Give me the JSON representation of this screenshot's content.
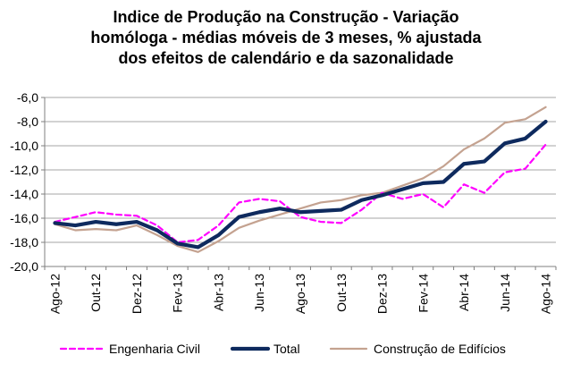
{
  "chart_data": {
    "type": "line",
    "title_lines": [
      "Indice de Produção na Construção  -  Variação",
      "homóloga - médias móveis de 3 meses, % ajustada",
      "dos efeitos de calendário  e da sazonalidade"
    ],
    "xlabel": "",
    "ylabel": "",
    "x_tick_labels": [
      "Ago-12",
      "Out-12",
      "Dez-12",
      "Fev-13",
      "Abr-13",
      "Jun-13",
      "Ago-13",
      "Out-13",
      "Dez-13",
      "Fev-14",
      "Abr-14",
      "Jun-14",
      "Ago-14"
    ],
    "x": [
      "Ago-12",
      "Set-12",
      "Out-12",
      "Nov-12",
      "Dez-12",
      "Jan-13",
      "Fev-13",
      "Mar-13",
      "Abr-13",
      "Mai-13",
      "Jun-13",
      "Jul-13",
      "Ago-13",
      "Set-13",
      "Out-13",
      "Nov-13",
      "Dez-13",
      "Jan-14",
      "Fev-14",
      "Mar-14",
      "Abr-14",
      "Mai-14",
      "Jun-14",
      "Jul-14",
      "Ago-14"
    ],
    "y_ticks": [
      "-6,0",
      "-8,0",
      "-10,0",
      "-12,0",
      "-14,0",
      "-16,0",
      "-18,0",
      "-20,0"
    ],
    "ylim": [
      -20,
      -6
    ],
    "grid": "horizontal",
    "legend_position": "bottom",
    "series": [
      {
        "name": "Engenharia Civil",
        "color": "#ff00ff",
        "style": "dashed",
        "values": [
          -16.3,
          -15.9,
          -15.5,
          -15.7,
          -15.8,
          -16.6,
          -18.0,
          -17.8,
          -16.6,
          -14.7,
          -14.4,
          -14.6,
          -15.9,
          -16.3,
          -16.4,
          -15.3,
          -13.9,
          -14.4,
          -14.0,
          -15.1,
          -13.2,
          -13.9,
          -12.2,
          -11.9,
          -9.9
        ]
      },
      {
        "name": "Total",
        "color": "#0e2a5e",
        "style": "solid-thick",
        "values": [
          -16.4,
          -16.6,
          -16.3,
          -16.5,
          -16.3,
          -17.0,
          -18.1,
          -18.4,
          -17.4,
          -15.9,
          -15.5,
          -15.2,
          -15.5,
          -15.4,
          -15.3,
          -14.5,
          -14.1,
          -13.6,
          -13.1,
          -13.0,
          -11.5,
          -11.3,
          -9.8,
          -9.4,
          -8.0
        ]
      },
      {
        "name": "Construção de Edifícios",
        "color": "#c4a290",
        "style": "solid",
        "values": [
          -16.5,
          -17.0,
          -16.9,
          -17.0,
          -16.6,
          -17.4,
          -18.3,
          -18.8,
          -17.9,
          -16.8,
          -16.2,
          -15.7,
          -15.2,
          -14.7,
          -14.5,
          -14.1,
          -13.9,
          -13.3,
          -12.7,
          -11.7,
          -10.3,
          -9.4,
          -8.1,
          -7.8,
          -6.8
        ]
      }
    ]
  }
}
